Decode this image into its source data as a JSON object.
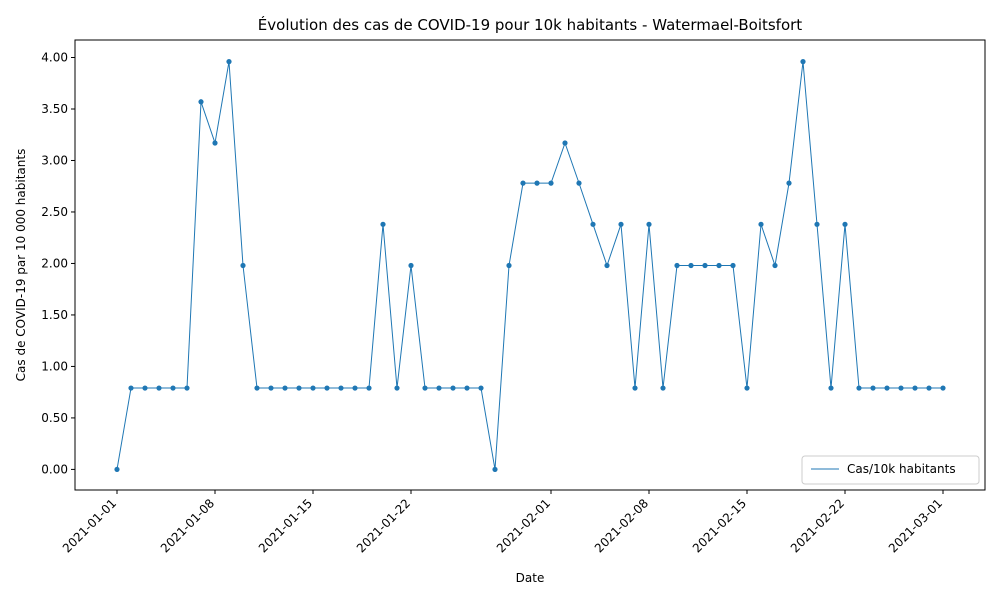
{
  "chart_data": {
    "type": "line",
    "title": "Évolution des cas de COVID-19 pour 10k habitants - Watermael-Boitsfort",
    "xlabel": "Date",
    "ylabel": "Cas de COVID-19 par 10 000 habitants",
    "x_start": "2021-01-01",
    "x_end": "2021-03-01",
    "xlim": [
      "2020-12-29",
      "2021-03-04"
    ],
    "ylim": [
      -0.2,
      4.17
    ],
    "x_ticks": [
      "2021-01-01",
      "2021-01-08",
      "2021-01-15",
      "2021-01-22",
      "2021-02-01",
      "2021-02-08",
      "2021-02-15",
      "2021-02-22",
      "2021-03-01"
    ],
    "y_ticks": [
      "0.00",
      "0.50",
      "1.00",
      "1.50",
      "2.00",
      "2.50",
      "3.00",
      "3.50",
      "4.00"
    ],
    "grid": false,
    "legend_position": "bottom-right",
    "series": [
      {
        "name": "Cas/10k habitants",
        "color": "#1f77b4",
        "values": [
          0,
          0.79,
          0.79,
          0.79,
          0.79,
          0.79,
          3.57,
          3.17,
          3.96,
          1.98,
          0.79,
          0.79,
          0.79,
          0.79,
          0.79,
          0.79,
          0.79,
          0.79,
          0.79,
          2.38,
          0.79,
          1.98,
          0.79,
          0.79,
          0.79,
          0.79,
          0.79,
          0,
          1.98,
          2.78,
          2.78,
          2.78,
          3.17,
          2.78,
          2.38,
          1.98,
          2.38,
          0.79,
          2.38,
          0.79,
          1.98,
          1.98,
          1.98,
          1.98,
          1.98,
          0.79,
          2.38,
          1.98,
          2.78,
          3.96,
          2.38,
          0.79,
          2.38,
          0.79,
          0.79,
          0.79,
          0.79,
          0.79,
          0.79,
          0.79
        ]
      }
    ]
  }
}
